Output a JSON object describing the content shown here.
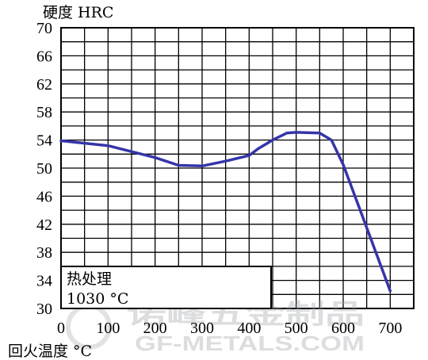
{
  "chart_data": {
    "type": "line",
    "title": "",
    "ylabel": "硬度 HRC",
    "xlabel": "回火温度 °C",
    "xlim": [
      0,
      750
    ],
    "ylim": [
      30,
      70
    ],
    "x_ticks": [
      0,
      100,
      200,
      300,
      400,
      500,
      600,
      700
    ],
    "y_ticks": [
      30,
      34,
      38,
      42,
      46,
      50,
      54,
      58,
      62,
      66,
      70
    ],
    "x_tick_labels": [
      "0",
      "100",
      "200",
      "300",
      "400",
      "500",
      "600",
      "700"
    ],
    "y_tick_labels": [
      "30",
      "34",
      "38",
      "42",
      "46",
      "50",
      "54",
      "58",
      "62",
      "66",
      "70"
    ],
    "grid": true,
    "grid_x_step": 50,
    "grid_y_step": 2,
    "series": [
      {
        "x": [
          0,
          100,
          200,
          250,
          300,
          350,
          400,
          420,
          450,
          480,
          500,
          550,
          575,
          600,
          650,
          700
        ],
        "y": [
          53.9,
          53.2,
          51.5,
          50.4,
          50.3,
          51.0,
          51.8,
          52.8,
          54.0,
          55.0,
          55.1,
          55.0,
          54.0,
          50.5,
          41.5,
          32.5
        ],
        "color": "#3535a8"
      }
    ],
    "annotation": {
      "line1": "热处理",
      "line2": "1030 °C"
    }
  },
  "watermark": {
    "cn": "诺峰五金制品",
    "en": "GF-METALS.COM"
  }
}
